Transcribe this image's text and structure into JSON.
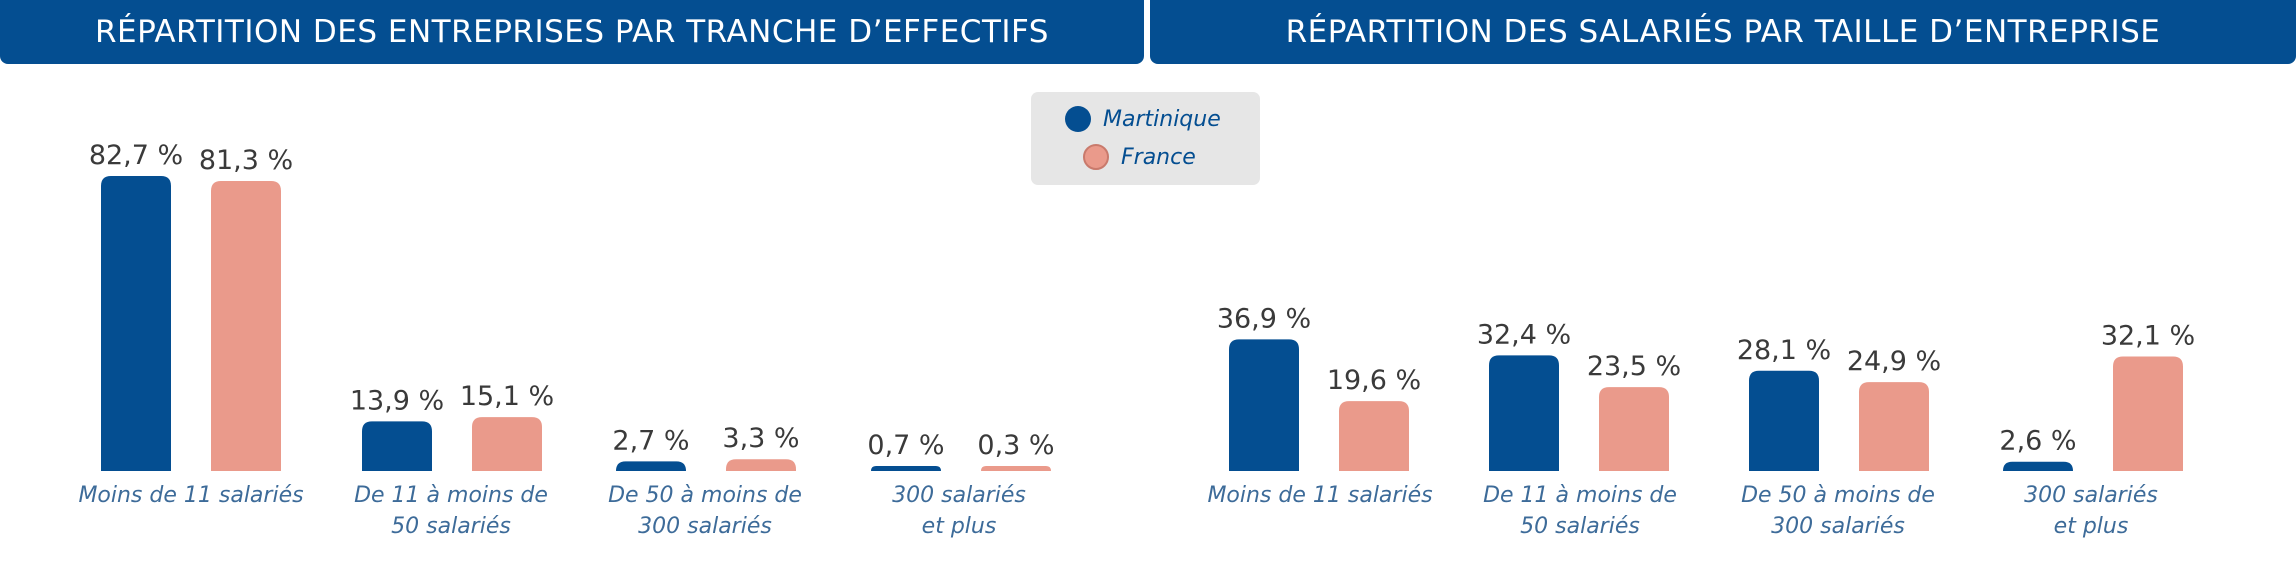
{
  "colors": {
    "header_bg": "#044e91",
    "martinique": "#044e91",
    "france": "#ea9a8b",
    "legend_bg": "#e6e6e6",
    "category_text": "#3d6b99",
    "value_text": "#3a3a3a"
  },
  "legend": [
    {
      "name": "Martinique",
      "color": "#044e91"
    },
    {
      "name": "France",
      "color": "#ea9a8b"
    }
  ],
  "chart_data": [
    {
      "type": "bar",
      "title": "RÉPARTITION DES ENTREPRISES PAR TRANCHE D’EFFECTIFS",
      "categories": [
        "Moins de 11 salariés",
        "De 11 à moins de 50 salariés",
        "De 50 à moins de 300 salariés",
        "300 salariés et plus"
      ],
      "category_lines": [
        [
          "Moins de 11 salariés"
        ],
        [
          "De 11 à moins de",
          "50 salariés"
        ],
        [
          "De 50 à moins de",
          "300 salariés"
        ],
        [
          "300 salariés",
          "et plus"
        ]
      ],
      "series": [
        {
          "name": "Martinique",
          "values": [
            82.7,
            13.9,
            2.7,
            0.7
          ],
          "labels": [
            "82,7 %",
            "13,9 %",
            "2,7 %",
            "0,7 %"
          ]
        },
        {
          "name": "France",
          "values": [
            81.3,
            15.1,
            3.3,
            0.3
          ],
          "labels": [
            "81,3 %",
            "15,1 %",
            "3,3 %",
            "0,3 %"
          ]
        }
      ],
      "unit": "%",
      "ylim": [
        0,
        82.7
      ],
      "grid": false,
      "legend_position": "top-center"
    },
    {
      "type": "bar",
      "title": "RÉPARTITION DES SALARIÉS PAR TAILLE D’ENTREPRISE",
      "categories": [
        "Moins de 11 salariés",
        "De 11 à moins de 50 salariés",
        "De 50 à moins de 300 salariés",
        "300 salariés et plus"
      ],
      "category_lines": [
        [
          "Moins de 11 salariés"
        ],
        [
          "De 11 à moins de",
          "50 salariés"
        ],
        [
          "De 50 à moins de",
          "300 salariés"
        ],
        [
          "300 salariés",
          "et plus"
        ]
      ],
      "series": [
        {
          "name": "Martinique",
          "values": [
            36.9,
            32.4,
            28.1,
            2.6
          ],
          "labels": [
            "36,9 %",
            "32,4 %",
            "28,1 %",
            "2,6 %"
          ]
        },
        {
          "name": "France",
          "values": [
            19.6,
            23.5,
            24.9,
            32.1
          ],
          "labels": [
            "19,6 %",
            "23,5 %",
            "24,9 %",
            "32,1 %"
          ]
        }
      ],
      "unit": "%",
      "ylim": [
        0,
        82.7
      ],
      "grid": false,
      "legend_position": "top-center"
    }
  ]
}
